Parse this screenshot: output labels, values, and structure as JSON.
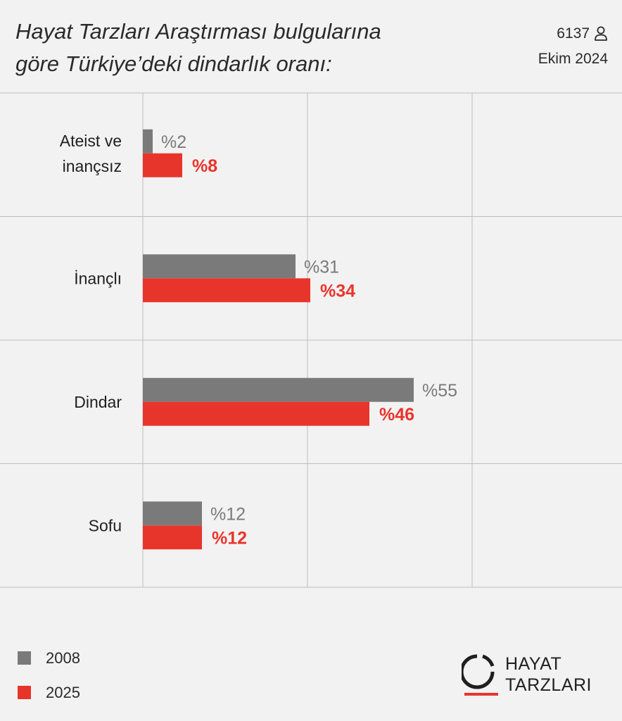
{
  "title_lines": [
    "Hayat Tarzları Araştırması bulgularına",
    "göre Türkiye’deki dindarlık oranı:"
  ],
  "sample_size": "6137",
  "sample_icon": "person-icon",
  "date": "Ekim 2024",
  "colors": {
    "series_2008": "#7a7a7a",
    "series_2025": "#e8352b",
    "grid": "#bdbdbd",
    "background": "#f3f2f3"
  },
  "chart_data": {
    "type": "bar",
    "orientation": "horizontal",
    "categories": [
      "Ateist ve\ninançsız",
      "İnançlı",
      "Dindar",
      "Sofu"
    ],
    "series": [
      {
        "name": "2008",
        "values": [
          2,
          31,
          55,
          12
        ],
        "labels": [
          "%2",
          "%31",
          "%55",
          "%12"
        ]
      },
      {
        "name": "2025",
        "values": [
          8,
          34,
          46,
          12
        ],
        "labels": [
          "%8",
          "%34",
          "%46",
          "%12"
        ]
      }
    ],
    "xlim": [
      0,
      100
    ],
    "grid": true,
    "legend": "bottom-left"
  },
  "legend": [
    {
      "label": "2008"
    },
    {
      "label": "2025"
    }
  ],
  "logo": {
    "line1": "HAYAT",
    "line2": "TARZLARI"
  }
}
